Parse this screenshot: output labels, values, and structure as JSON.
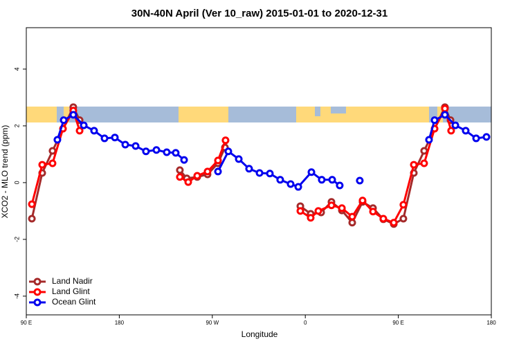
{
  "chart_data": {
    "type": "line",
    "title": "30N-40N April (Ver 10_raw)   2015-01-01 to 2020-12-31",
    "x_label": "Longitude",
    "y_label": "XCO2 - MLO trend (ppm)",
    "xlim": [
      90,
      540
    ],
    "xticks": [
      {
        "value": 90,
        "label": "90 E"
      },
      180,
      {
        "value": 270,
        "label": "90 W"
      },
      {
        "value": 360,
        "label": "0"
      },
      {
        "value": 450,
        "label": "90 E"
      },
      {
        "value": 540,
        "label": "180"
      }
    ],
    "ylim": [
      -4.66,
      5.46
    ],
    "yticks": [
      -4,
      -2,
      0,
      2,
      4
    ],
    "legend": "bottomleft",
    "series": [
      {
        "name": "Land Nadir",
        "color": "#a52a2a",
        "x": [
          95.4,
          105.4,
          115.4,
          135.5,
          141.6,
          null,
          238.6,
          245.3,
          255.4,
          265.4,
          275.5,
          282.2,
          null,
          355.2,
          365.2,
          375.3,
          385.3,
          395.4,
          405.4,
          415.4,
          425.5,
          435.5,
          445.6,
          454.9,
          465.0,
          475.0,
          495.1,
          500.5
        ],
        "values": [
          -1.27,
          0.34,
          1.12,
          2.66,
          2.2,
          null,
          0.44,
          0.15,
          0.2,
          0.29,
          0.68,
          1.24,
          null,
          -0.83,
          -1.1,
          -1.05,
          -0.68,
          -0.98,
          -1.41,
          -0.68,
          -0.9,
          -1.29,
          -1.46,
          -1.27,
          0.34,
          1.12,
          2.66,
          2.2
        ]
      },
      {
        "name": "Land Glint",
        "color": "#ff0000",
        "x": [
          95.4,
          105.4,
          115.4,
          125.5,
          135.5,
          141.6,
          null,
          238.6,
          246.7,
          255.4,
          265.4,
          275.5,
          282.8,
          null,
          355.2,
          365.2,
          372.6,
          385.3,
          395.4,
          405.4,
          415.4,
          425.5,
          435.5,
          445.6,
          454.9,
          465.0,
          475.0,
          485.1,
          495.1,
          501.1
        ],
        "values": [
          -0.76,
          0.63,
          0.68,
          1.9,
          2.54,
          1.83,
          null,
          0.2,
          0.02,
          0.24,
          0.39,
          0.78,
          1.49,
          null,
          -1.0,
          -1.24,
          -1.0,
          -0.8,
          -0.9,
          -1.2,
          -0.63,
          -1.02,
          -1.27,
          -1.41,
          -0.78,
          0.63,
          0.68,
          1.9,
          2.61,
          1.83
        ]
      },
      {
        "name": "Ocean Glint",
        "color": "#0000ee",
        "x": [
          120.1,
          126.2,
          135.5,
          145.6,
          155.6,
          165.7,
          175.7,
          185.8,
          195.8,
          205.8,
          215.9,
          225.9,
          234.6,
          242.7,
          null,
          275.5,
          285.5,
          295.6,
          305.6,
          315.7,
          325.7,
          335.7,
          345.8,
          353.2,
          365.9,
          375.9,
          386.0,
          393.3,
          null,
          412.7,
          null,
          479.7,
          485.1,
          495.1,
          505.2,
          515.2,
          525.3,
          535.3
        ],
        "values": [
          1.51,
          2.2,
          2.39,
          2.02,
          1.83,
          1.56,
          1.59,
          1.34,
          1.29,
          1.1,
          1.15,
          1.07,
          1.05,
          0.8,
          null,
          0.39,
          1.1,
          0.83,
          0.49,
          0.34,
          0.32,
          0.1,
          -0.05,
          -0.15,
          0.37,
          0.1,
          0.1,
          -0.1,
          null,
          0.07,
          null,
          1.51,
          2.2,
          2.39,
          2.02,
          1.83,
          1.56,
          1.61
        ]
      }
    ]
  }
}
